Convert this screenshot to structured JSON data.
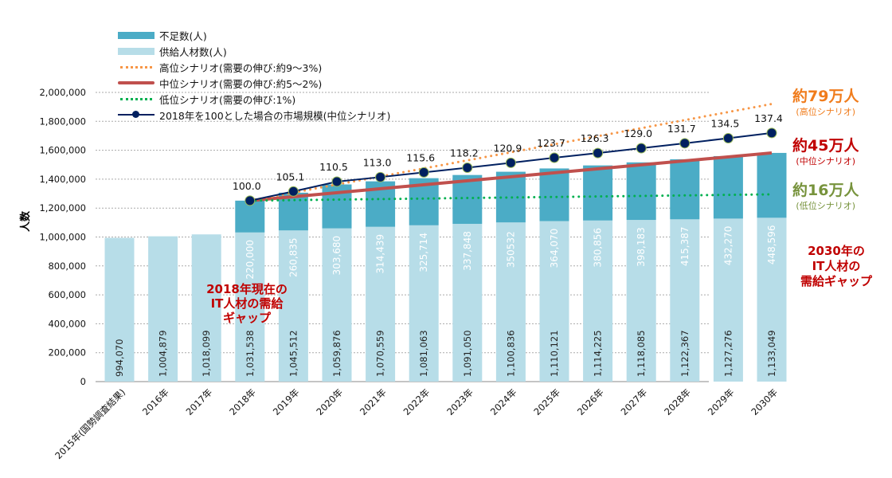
{
  "chart_data": {
    "type": "bar",
    "ylabel": "人数",
    "ylim": [
      0,
      2000000
    ],
    "yticks": [
      "0",
      "200,000",
      "400,000",
      "600,000",
      "800,000",
      "1,000,000",
      "1,200,000",
      "1,400,000",
      "1,600,000",
      "1,800,000",
      "2,000,000"
    ],
    "grid": true,
    "legend_position": "top-left",
    "categories": [
      "2015年(国勢調査結果)",
      "2016年",
      "2017年",
      "2018年",
      "2019年",
      "2020年",
      "2021年",
      "2022年",
      "2023年",
      "2024年",
      "2025年",
      "2026年",
      "2027年",
      "2028年",
      "2029年",
      "2030年"
    ],
    "series": [
      {
        "name": "不足数(人)",
        "kind": "stacked-bar",
        "color": "#4bacc6",
        "values": [
          null,
          null,
          null,
          220000,
          260835,
          303680,
          314439,
          325714,
          337848,
          350532,
          364070,
          380856,
          398183,
          415387,
          432270,
          448596
        ],
        "labels": [
          "",
          "",
          "",
          "220,000",
          "260,835",
          "303,680",
          "314,439",
          "325,714",
          "337,848",
          "350532",
          "364,070",
          "380,856",
          "398,183",
          "415,387",
          "432,270",
          "448,596"
        ]
      },
      {
        "name": "供給人材数(人)",
        "kind": "stacked-bar",
        "color": "#b7dde8",
        "values": [
          994070,
          1004879,
          1018099,
          1031538,
          1045512,
          1059876,
          1070559,
          1081063,
          1091050,
          1100836,
          1110121,
          1114225,
          1118085,
          1122367,
          1127276,
          1133049
        ],
        "labels": [
          "994,070",
          "1,004,879",
          "1,018,099",
          "1,031,538",
          "1,045,512",
          "1,059,876",
          "1,070,559",
          "1,081,063",
          "1,091,050",
          "1,100,836",
          "1,110,121",
          "1,114,225",
          "1,118,085",
          "1,122,367",
          "1,127,276",
          "1,133,049"
        ]
      },
      {
        "name": "高位シナリオ(需要の伸び:約9〜3%)",
        "kind": "dotted-line",
        "color": "#f79646",
        "x": [
          "2018年",
          "2030年"
        ],
        "values": [
          1251538,
          1920000
        ]
      },
      {
        "name": "中位シナリオ(需要の伸び:約5〜2%)",
        "kind": "line",
        "color": "#c0504d",
        "x": [
          "2018年",
          "2030年"
        ],
        "values": [
          1251538,
          1581645
        ]
      },
      {
        "name": "低位シナリオ(需要の伸び:1%)",
        "kind": "dotted-line",
        "color": "#00b050",
        "x": [
          "2018年",
          "2030年"
        ],
        "values": [
          1251538,
          1295000
        ]
      },
      {
        "name": "2018年を100とした場合の市場規模(中位シナリオ)",
        "kind": "line-marker",
        "color": "#002060",
        "x": [
          "2018年",
          "2019年",
          "2020年",
          "2021年",
          "2022年",
          "2023年",
          "2024年",
          "2025年",
          "2026年",
          "2027年",
          "2028年",
          "2029年",
          "2030年"
        ],
        "values": [
          100.0,
          105.1,
          110.5,
          113.0,
          115.6,
          118.2,
          120.9,
          123.7,
          126.3,
          129.0,
          131.7,
          134.5,
          137.4
        ],
        "labels": [
          "100.0",
          "105.1",
          "110.5",
          "113.0",
          "115.6",
          "118.2",
          "120.9",
          "123.7",
          "126.3",
          "129.0",
          "131.7",
          "134.5",
          "137.4"
        ]
      }
    ],
    "annotations": {
      "high": {
        "main": "約79万人",
        "sub": "(高位シナリオ)",
        "color": "#f07c1c"
      },
      "mid": {
        "main": "約45万人",
        "sub": "(中位シナリオ)",
        "color": "#c00000"
      },
      "low": {
        "main": "約16万人",
        "sub": "(低位シナリオ)",
        "color": "#77933c"
      },
      "gap2018": [
        "2018年現在の",
        "IT人材の需給",
        "ギャップ"
      ],
      "gap2030": [
        "2030年の",
        "IT人材の",
        "需給ギャップ"
      ]
    }
  }
}
